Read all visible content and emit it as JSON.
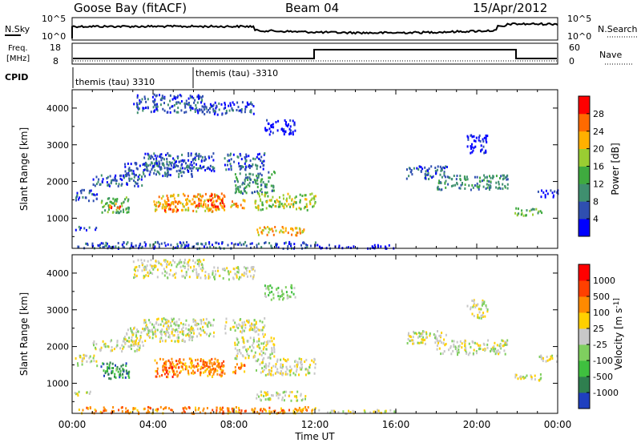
{
  "header": {
    "station": "Goose Bay (fitACF)",
    "beam": "Beam 04",
    "date": "15/Apr/2012"
  },
  "nsky_panel": {
    "label": "N.Sky",
    "right_label": "N.Search",
    "ticks": [
      "10^5",
      "10^0"
    ],
    "right_ticks": [
      "10^5",
      "10^0"
    ]
  },
  "freq_panel": {
    "label_top": "Freq.",
    "label_bottom": "[MHz]",
    "ticks": [
      "18",
      "8"
    ],
    "right_label": "Nave",
    "right_ticks": [
      "60",
      "0"
    ]
  },
  "cpid_panel": {
    "label": "CPID",
    "segments": [
      {
        "label": "themis (tau) 3310",
        "start_hour": 0,
        "end_hour": 6
      },
      {
        "label": "themis (tau) -3310",
        "start_hour": 6,
        "end_hour": 24
      }
    ]
  },
  "x_axis": {
    "label": "Time UT",
    "ticks": [
      "00:00",
      "04:00",
      "08:00",
      "12:00",
      "16:00",
      "20:00",
      "00:00"
    ]
  },
  "chart_data": [
    {
      "type": "heatmap",
      "ylabel": "Slant Range [km]",
      "y_ticks": [
        "1000",
        "2000",
        "3000",
        "4000"
      ],
      "colorbar_label": "Power [dB]",
      "colorbar_ticks": [
        "4",
        "8",
        "12",
        "16",
        "20",
        "24",
        "28"
      ],
      "colorbar_colors": [
        "#0000ff",
        "#2f4fb0",
        "#3f8f6f",
        "#3faa3f",
        "#9acd32",
        "#ffb000",
        "#ff6a00",
        "#ff0000"
      ],
      "x_range_hours": [
        0,
        24
      ],
      "y_range_km": [
        180,
        4500
      ],
      "scatter_regions": [
        {
          "t0": 0.1,
          "t1": 1.2,
          "r0": 1500,
          "r1": 1800,
          "level": 1
        },
        {
          "t0": 0.1,
          "t1": 1.2,
          "r0": 700,
          "r1": 800,
          "level": 1
        },
        {
          "t0": 1.0,
          "t1": 3.5,
          "r0": 1900,
          "r1": 2200,
          "level": 1
        },
        {
          "t0": 1.4,
          "t1": 2.8,
          "r0": 1150,
          "r1": 1600,
          "level": 3
        },
        {
          "t0": 1.8,
          "t1": 2.4,
          "r0": 1250,
          "r1": 1450,
          "level": 6
        },
        {
          "t0": 2.5,
          "t1": 6.0,
          "r0": 2150,
          "r1": 2550,
          "level": 1
        },
        {
          "t0": 3.5,
          "t1": 7.0,
          "r0": 2300,
          "r1": 2800,
          "level": 1
        },
        {
          "t0": 4.0,
          "t1": 7.5,
          "r0": 1200,
          "r1": 1700,
          "level": 5
        },
        {
          "t0": 4.5,
          "t1": 5.2,
          "r0": 1200,
          "r1": 1500,
          "level": 6
        },
        {
          "t0": 6.0,
          "t1": 7.5,
          "r0": 1250,
          "r1": 1650,
          "level": 6
        },
        {
          "t0": 7.5,
          "t1": 9.5,
          "r0": 2350,
          "r1": 2800,
          "level": 1
        },
        {
          "t0": 7.8,
          "t1": 8.5,
          "r0": 1300,
          "r1": 1600,
          "level": 5
        },
        {
          "t0": 8.0,
          "t1": 10.0,
          "r0": 1700,
          "r1": 2300,
          "level": 2
        },
        {
          "t0": 9.0,
          "t1": 12.0,
          "r0": 1250,
          "r1": 1700,
          "level": 4
        },
        {
          "t0": 9.0,
          "t1": 11.5,
          "r0": 550,
          "r1": 800,
          "level": 5
        },
        {
          "t0": 3.0,
          "t1": 6.5,
          "r0": 3900,
          "r1": 4400,
          "level": 1
        },
        {
          "t0": 6.5,
          "t1": 9.0,
          "r0": 3850,
          "r1": 4200,
          "level": 1
        },
        {
          "t0": 9.5,
          "t1": 11.0,
          "r0": 3300,
          "r1": 3700,
          "level": 0
        },
        {
          "t0": 0.2,
          "t1": 12.0,
          "r0": 200,
          "r1": 380,
          "level": 1
        },
        {
          "t0": 12.0,
          "t1": 16.0,
          "r0": 200,
          "r1": 300,
          "level": 0
        },
        {
          "t0": 16.5,
          "t1": 18.5,
          "r0": 2100,
          "r1": 2450,
          "level": 1
        },
        {
          "t0": 18.0,
          "t1": 21.5,
          "r0": 1800,
          "r1": 2200,
          "level": 2
        },
        {
          "t0": 19.5,
          "t1": 20.5,
          "r0": 2800,
          "r1": 3300,
          "level": 0
        },
        {
          "t0": 21.8,
          "t1": 23.2,
          "r0": 1100,
          "r1": 1300,
          "level": 3
        },
        {
          "t0": 23.0,
          "t1": 24.0,
          "r0": 1600,
          "r1": 1800,
          "level": 0
        }
      ]
    },
    {
      "type": "heatmap",
      "ylabel": "Slant Range [km]",
      "y_ticks": [
        "1000",
        "2000",
        "3000",
        "4000"
      ],
      "colorbar_label": "Velocity [m s^-1]",
      "colorbar_ticks": [
        "1000",
        "500",
        "100",
        "25",
        "-25",
        "-100",
        "-500",
        "-1000"
      ],
      "colorbar_colors": [
        "#1f3fbf",
        "#2f7f4f",
        "#3fbf3f",
        "#7fcf5f",
        "#c8c8c8",
        "#ffd000",
        "#ff8a00",
        "#ff4000",
        "#ff0000"
      ],
      "x_range_hours": [
        0,
        24
      ],
      "y_range_km": [
        180,
        4500
      ],
      "scatter_regions": [
        {
          "t0": 0.1,
          "t1": 1.2,
          "r0": 1500,
          "r1": 1800,
          "level": 4
        },
        {
          "t0": 0.1,
          "t1": 1.2,
          "r0": 700,
          "r1": 800,
          "level": 4
        },
        {
          "t0": 1.0,
          "t1": 3.5,
          "r0": 1900,
          "r1": 2200,
          "level": 4
        },
        {
          "t0": 1.4,
          "t1": 2.8,
          "r0": 1150,
          "r1": 1600,
          "level": 1
        },
        {
          "t0": 1.8,
          "t1": 2.4,
          "r0": 1250,
          "r1": 1450,
          "level": 2
        },
        {
          "t0": 2.5,
          "t1": 6.0,
          "r0": 2150,
          "r1": 2550,
          "level": 4
        },
        {
          "t0": 3.5,
          "t1": 7.0,
          "r0": 2300,
          "r1": 2800,
          "level": 4
        },
        {
          "t0": 4.0,
          "t1": 7.5,
          "r0": 1200,
          "r1": 1700,
          "level": 6
        },
        {
          "t0": 4.5,
          "t1": 5.2,
          "r0": 1200,
          "r1": 1500,
          "level": 7
        },
        {
          "t0": 6.0,
          "t1": 7.5,
          "r0": 1250,
          "r1": 1650,
          "level": 6
        },
        {
          "t0": 7.5,
          "t1": 9.5,
          "r0": 2350,
          "r1": 2800,
          "level": 4
        },
        {
          "t0": 7.8,
          "t1": 8.5,
          "r0": 1300,
          "r1": 1600,
          "level": 6
        },
        {
          "t0": 8.0,
          "t1": 10.0,
          "r0": 1700,
          "r1": 2300,
          "level": 4
        },
        {
          "t0": 9.0,
          "t1": 12.0,
          "r0": 1250,
          "r1": 1700,
          "level": 4
        },
        {
          "t0": 9.0,
          "t1": 11.5,
          "r0": 550,
          "r1": 800,
          "level": 4
        },
        {
          "t0": 3.0,
          "t1": 6.5,
          "r0": 3900,
          "r1": 4400,
          "level": 4
        },
        {
          "t0": 6.5,
          "t1": 9.0,
          "r0": 3850,
          "r1": 4200,
          "level": 4
        },
        {
          "t0": 9.5,
          "t1": 11.0,
          "r0": 3300,
          "r1": 3700,
          "level": 3
        },
        {
          "t0": 0.2,
          "t1": 12.0,
          "r0": 200,
          "r1": 380,
          "level": 6
        },
        {
          "t0": 12.0,
          "t1": 16.0,
          "r0": 200,
          "r1": 300,
          "level": 4
        },
        {
          "t0": 16.5,
          "t1": 18.5,
          "r0": 2100,
          "r1": 2450,
          "level": 4
        },
        {
          "t0": 18.0,
          "t1": 21.5,
          "r0": 1800,
          "r1": 2200,
          "level": 4
        },
        {
          "t0": 19.5,
          "t1": 20.5,
          "r0": 2800,
          "r1": 3300,
          "level": 4
        },
        {
          "t0": 21.8,
          "t1": 23.2,
          "r0": 1100,
          "r1": 1300,
          "level": 4
        },
        {
          "t0": 23.0,
          "t1": 24.0,
          "r0": 1600,
          "r1": 1800,
          "level": 4
        }
      ]
    }
  ]
}
